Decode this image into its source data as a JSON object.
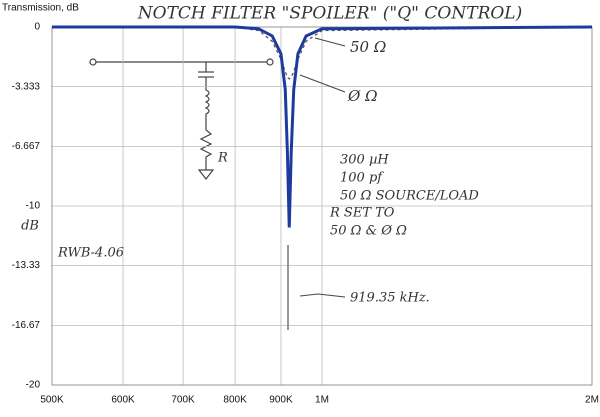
{
  "chart_data": {
    "type": "line",
    "title": "NOTCH FILTER \"SPOILER\" (\"Q\" CONTROL)",
    "y_axis_title": "Transmission, dB",
    "y_side_label": "dB",
    "x": [
      500000,
      600000,
      700000,
      800000,
      850000,
      880000,
      900000,
      910000,
      915000,
      919350,
      924000,
      930000,
      940000,
      960000,
      1000000,
      2000000
    ],
    "series": [
      {
        "name": "Ø Ω",
        "color": "#1f3a9e",
        "style": "solid",
        "values": [
          0,
          0,
          0,
          0,
          -0.1,
          -0.5,
          -1.5,
          -3.5,
          -7,
          -11.2,
          -7,
          -3.5,
          -1.5,
          -0.5,
          -0.1,
          0
        ]
      },
      {
        "name": "50 Ω",
        "color": "#555555",
        "style": "dashed",
        "values": [
          0,
          0,
          0,
          0,
          -0.2,
          -0.8,
          -1.8,
          -2.5,
          -2.8,
          -2.9,
          -2.8,
          -2.5,
          -1.8,
          -0.8,
          -0.2,
          0
        ]
      }
    ],
    "xlim": [
      500000,
      2000000
    ],
    "log_x": true,
    "xticks": [
      {
        "value": 500000,
        "label": "500K"
      },
      {
        "value": 600000,
        "label": "600K"
      },
      {
        "value": 700000,
        "label": "700K"
      },
      {
        "value": 800000,
        "label": "800K"
      },
      {
        "value": 900000,
        "label": "900K"
      },
      {
        "value": 1000000,
        "label": "1M"
      },
      {
        "value": 2000000,
        "label": "2M"
      }
    ],
    "ylim": [
      -20,
      0
    ],
    "yticks": [
      0,
      -3.333,
      -6.667,
      -10,
      -13.33,
      -16.67,
      -20
    ],
    "grid": true,
    "notes": [
      "300 µH",
      "100 pf",
      "50 Ω SOURCE/LOAD",
      "R SET TO",
      "50 Ω & Ø Ω",
      "RWB-4.06",
      "919.35 kHz.",
      "R"
    ]
  }
}
